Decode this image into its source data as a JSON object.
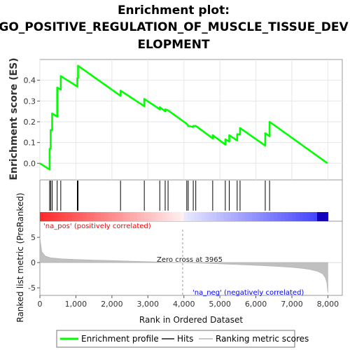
{
  "title_line1": "Enrichment plot:",
  "title_line2": "GO_POSITIVE_REGULATION_OF_MUSCLE_TISSUE_DEV",
  "title_line3": "ELOPMENT",
  "chart_data": {
    "type": "line",
    "xlabel": "Rank in Ordered Dataset",
    "x_ticks": [
      0,
      1000,
      2000,
      3000,
      4000,
      5000,
      6000,
      7000,
      8000
    ],
    "x_tick_labels": [
      "0",
      "1,000",
      "2,000",
      "3,000",
      "4,000",
      "5,000",
      "6,000",
      "7,000",
      "8,000"
    ],
    "xlim": [
      0,
      8400
    ],
    "es_panel": {
      "ylabel": "Enrichment score (ES)",
      "ylim": [
        -0.08,
        0.5
      ],
      "y_ticks": [
        0.0,
        0.1,
        0.2,
        0.3,
        0.4
      ],
      "y_tick_labels": [
        "0.0",
        "0.1",
        "0.2",
        "0.3",
        "0.4"
      ],
      "series": [
        {
          "name": "Enrichment profile",
          "color": "#00ff00",
          "x": [
            0,
            270,
            270,
            300,
            300,
            340,
            340,
            480,
            480,
            580,
            580,
            1040,
            1040,
            1060,
            1060,
            2240,
            2240,
            2900,
            2900,
            3330,
            3330,
            3480,
            3480,
            3560,
            3560,
            4080,
            4080,
            4120,
            4120,
            4260,
            4260,
            4330,
            4330,
            4800,
            4800,
            5150,
            5150,
            5260,
            5260,
            5480,
            5480,
            5560,
            5560,
            6260,
            6260,
            6380,
            6380,
            7990
          ],
          "y": [
            0.0,
            -0.03,
            0.07,
            0.07,
            0.16,
            0.16,
            0.24,
            0.225,
            0.365,
            0.355,
            0.42,
            0.37,
            0.41,
            0.41,
            0.47,
            0.325,
            0.35,
            0.275,
            0.31,
            0.26,
            0.27,
            0.25,
            0.26,
            0.255,
            0.255,
            0.19,
            0.19,
            0.18,
            0.18,
            0.175,
            0.18,
            0.18,
            0.18,
            0.12,
            0.135,
            0.09,
            0.115,
            0.105,
            0.135,
            0.11,
            0.14,
            0.14,
            0.17,
            0.085,
            0.145,
            0.13,
            0.2,
            0.0
          ]
        }
      ]
    },
    "hits_panel": {
      "name": "Hits",
      "color": "#000000",
      "hit_ranks": [
        270,
        300,
        340,
        480,
        580,
        1040,
        1060,
        2240,
        2900,
        3330,
        3480,
        3560,
        4080,
        4120,
        4260,
        4330,
        4800,
        5150,
        5260,
        5480,
        5560,
        6260,
        6380
      ]
    },
    "ranked_panel": {
      "name": "Ranking metric scores",
      "ylabel": "Ranked list metric (PreRanked)",
      "ylim": [
        -6.5,
        8.2
      ],
      "y_ticks": [
        -5,
        0,
        5
      ],
      "y_tick_labels": [
        "-5",
        "0",
        "5"
      ],
      "zero_cross_rank": 3965,
      "total_ranks": 8000,
      "curve_x": [
        0,
        50,
        150,
        300,
        600,
        1000,
        1500,
        2000,
        2500,
        3000,
        3500,
        3965,
        4500,
        5000,
        5500,
        6000,
        6500,
        7000,
        7300,
        7500,
        7700,
        7850,
        7930,
        7970,
        8000
      ],
      "curve_y": [
        5.0,
        2.2,
        1.3,
        0.95,
        0.75,
        0.62,
        0.5,
        0.4,
        0.3,
        0.18,
        0.08,
        0.0,
        -0.12,
        -0.25,
        -0.4,
        -0.55,
        -0.72,
        -0.95,
        -1.15,
        -1.35,
        -1.7,
        -2.2,
        -3.0,
        -4.0,
        -6.0
      ],
      "annotations": {
        "na_pos": "'na_pos' (positively correlated)",
        "na_neg": "'na_neg' (negatively correlated)",
        "zero_cross": "Zero cross at 3965"
      }
    },
    "legend": {
      "placement": "bottom",
      "entries": [
        "Enrichment profile",
        "Hits",
        "Ranking metric scores"
      ]
    },
    "colors": {
      "enrichment": "#00ff00",
      "hits": "#000000",
      "ranking": "#c0c0c0",
      "pos_label": "#ff0000",
      "neg_label": "#0000ff"
    }
  }
}
